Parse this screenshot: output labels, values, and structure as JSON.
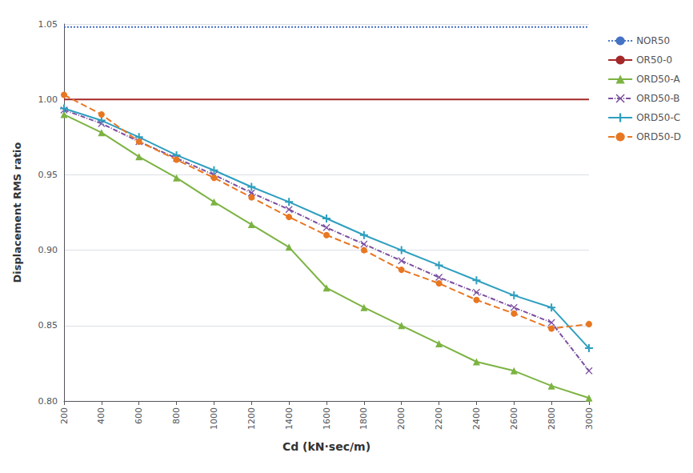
{
  "chart_data": {
    "type": "line",
    "xlabel": "Cd (kN·sec/m)",
    "ylabel": "Displacement RMS ratio",
    "x": [
      200,
      400,
      600,
      800,
      1000,
      1200,
      1400,
      1600,
      1800,
      2000,
      2200,
      2400,
      2600,
      2800,
      3000
    ],
    "series": [
      {
        "name": "NOR50",
        "color": "#4472C4",
        "marker": "none",
        "line_style": "dotted",
        "values": [
          1.048,
          1.048,
          1.048,
          1.048,
          1.048,
          1.048,
          1.048,
          1.048,
          1.048,
          1.048,
          1.048,
          1.048,
          1.048,
          1.048,
          1.048
        ]
      },
      {
        "name": "OR50-0",
        "color": "#A52828",
        "marker": "none",
        "line_style": "solid",
        "values": [
          1.0,
          1.0,
          1.0,
          1.0,
          1.0,
          1.0,
          1.0,
          1.0,
          1.0,
          1.0,
          1.0,
          1.0,
          1.0,
          1.0,
          1.0
        ]
      },
      {
        "name": "ORD50-A",
        "color": "#7CB342",
        "marker": "triangle",
        "line_style": "solid",
        "values": [
          0.99,
          0.978,
          0.962,
          0.948,
          0.932,
          0.917,
          0.902,
          0.875,
          0.862,
          0.85,
          0.838,
          0.826,
          0.82,
          0.81,
          0.802
        ]
      },
      {
        "name": "ORD50-B",
        "color": "#7B4EA0",
        "marker": "x",
        "line_style": "dashdot",
        "values": [
          0.993,
          0.984,
          0.972,
          0.961,
          0.95,
          0.938,
          0.927,
          0.915,
          0.904,
          0.893,
          0.882,
          0.872,
          0.862,
          0.852,
          0.82
        ]
      },
      {
        "name": "ORD50-C",
        "color": "#2E9FBF",
        "marker": "plus",
        "line_style": "solid",
        "values": [
          0.994,
          0.986,
          0.975,
          0.963,
          0.953,
          0.942,
          0.932,
          0.921,
          0.91,
          0.9,
          0.89,
          0.88,
          0.87,
          0.862,
          0.835
        ]
      },
      {
        "name": "ORD50-D",
        "color": "#E87722",
        "marker": "circle",
        "line_style": "dashed",
        "values": [
          1.003,
          0.99,
          0.972,
          0.96,
          0.948,
          0.935,
          0.922,
          0.91,
          0.9,
          0.887,
          0.878,
          0.867,
          0.858,
          0.848,
          0.851
        ]
      }
    ],
    "xlim": [
      200,
      3000
    ],
    "xticks": [
      200,
      400,
      600,
      800,
      1000,
      1200,
      1400,
      1600,
      1800,
      2000,
      2200,
      2400,
      2600,
      2800,
      3000
    ],
    "ylim": [
      0.8,
      1.05
    ],
    "yticks": [
      {
        "value": 0.8,
        "label": "0.80"
      },
      0.85,
      {
        "value": 0.9,
        "label": "0.90"
      },
      0.95,
      {
        "value": 1.0,
        "label": "1.00"
      },
      1.05
    ],
    "grid": true,
    "legend": "upper right"
  }
}
